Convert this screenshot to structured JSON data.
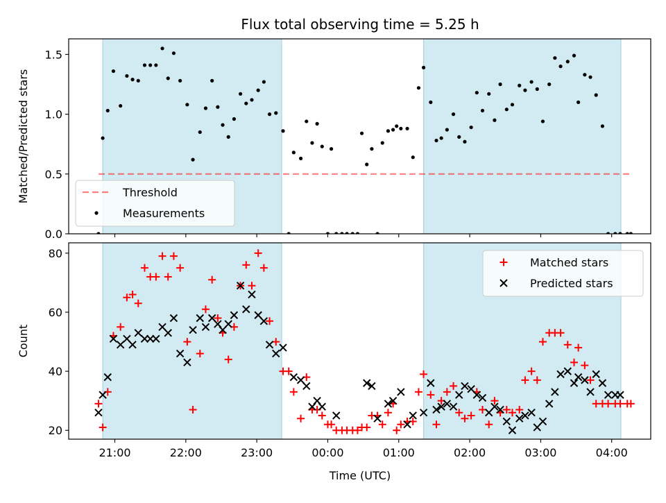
{
  "chart_data": {
    "title": "Flux total observing time = 5.25 h",
    "colors": {
      "shade": "#add8e6",
      "threshold": "#ff0000",
      "measurement": "#000000",
      "matched": "#ff0000",
      "predicted": "#000000"
    },
    "x_axis": {
      "label": "Time (UTC)",
      "range_hours": [
        20.35,
        28.55
      ],
      "ticks": [
        {
          "value": 21,
          "label": "21:00"
        },
        {
          "value": 22,
          "label": "22:00"
        },
        {
          "value": 23,
          "label": "23:00"
        },
        {
          "value": 24,
          "label": "00:00"
        },
        {
          "value": 25,
          "label": "01:00"
        },
        {
          "value": 26,
          "label": "02:00"
        },
        {
          "value": 27,
          "label": "03:00"
        },
        {
          "value": 28,
          "label": "04:00"
        }
      ]
    },
    "shaded_intervals_hours": [
      [
        20.83,
        23.35
      ],
      [
        25.35,
        28.13
      ]
    ],
    "charts": [
      {
        "type": "scatter",
        "ylabel": "Matched/Predicted stars",
        "ylim": [
          0,
          1.63
        ],
        "yticks": [
          {
            "value": 0,
            "label": "0.0"
          },
          {
            "value": 0.5,
            "label": "0.5"
          },
          {
            "value": 1.0,
            "label": "1.0"
          },
          {
            "value": 1.5,
            "label": "1.5"
          }
        ],
        "threshold": {
          "name": "Threshold",
          "value": 0.5,
          "x_range_hours": [
            20.77,
            28.26
          ]
        },
        "legend_position": "lower-left",
        "series": [
          {
            "name": "Measurements",
            "marker": "dot",
            "x_hours": [
              20.77,
              20.83,
              20.9,
              20.98,
              21.08,
              21.17,
              21.25,
              21.33,
              21.42,
              21.5,
              21.58,
              21.67,
              21.75,
              21.83,
              21.92,
              22.02,
              22.1,
              22.2,
              22.28,
              22.37,
              22.45,
              22.52,
              22.6,
              22.68,
              22.77,
              22.85,
              22.93,
              23.02,
              23.1,
              23.18,
              23.27,
              23.37,
              23.45,
              23.52,
              23.62,
              23.7,
              23.78,
              23.85,
              23.92,
              24.0,
              24.05,
              24.12,
              24.2,
              24.27,
              24.35,
              24.42,
              24.48,
              24.55,
              24.62,
              24.7,
              24.77,
              24.85,
              24.92,
              24.97,
              25.03,
              25.12,
              25.2,
              25.28,
              25.35,
              25.45,
              25.53,
              25.6,
              25.68,
              25.77,
              25.85,
              25.93,
              26.02,
              26.1,
              26.18,
              26.27,
              26.35,
              26.43,
              26.52,
              26.6,
              26.7,
              26.78,
              26.87,
              26.95,
              27.03,
              27.12,
              27.2,
              27.28,
              27.38,
              27.47,
              27.53,
              27.62,
              27.7,
              27.78,
              27.87,
              27.95,
              28.05,
              28.12,
              28.22,
              28.27
            ],
            "y": [
              0.0,
              0.8,
              1.03,
              1.36,
              1.07,
              1.32,
              1.29,
              1.28,
              1.41,
              1.41,
              1.41,
              1.55,
              1.3,
              1.51,
              1.28,
              1.08,
              0.62,
              0.85,
              1.05,
              1.28,
              1.06,
              0.91,
              0.81,
              0.96,
              1.17,
              1.09,
              1.12,
              1.2,
              1.27,
              1.0,
              1.01,
              0.86,
              0.0,
              0.68,
              0.63,
              0.94,
              0.76,
              0.92,
              0.73,
              0.0,
              0.71,
              0.0,
              0.0,
              0.0,
              0.0,
              0.0,
              0.84,
              0.58,
              0.71,
              0.0,
              0.76,
              0.86,
              0.87,
              0.9,
              0.88,
              0.88,
              0.64,
              1.22,
              1.39,
              1.1,
              0.78,
              0.8,
              0.87,
              1.0,
              0.81,
              0.77,
              0.89,
              1.18,
              1.03,
              1.17,
              0.95,
              1.25,
              1.04,
              1.08,
              1.24,
              1.2,
              1.27,
              1.21,
              0.94,
              1.25,
              1.47,
              1.4,
              1.44,
              1.49,
              1.1,
              1.33,
              1.31,
              1.16,
              0.9,
              0.0,
              0.0,
              0.0,
              0.0,
              0.0
            ]
          }
        ]
      },
      {
        "type": "scatter",
        "ylabel": "Count",
        "ylim": [
          17,
          83.5
        ],
        "yticks": [
          {
            "value": 20,
            "label": "20"
          },
          {
            "value": 40,
            "label": "40"
          },
          {
            "value": 60,
            "label": "60"
          },
          {
            "value": 80,
            "label": "80"
          }
        ],
        "legend_position": "upper-right",
        "series": [
          {
            "name": "Matched stars",
            "marker": "plus",
            "x_hours": [
              20.77,
              20.83,
              20.9,
              20.98,
              21.08,
              21.17,
              21.25,
              21.33,
              21.42,
              21.5,
              21.58,
              21.67,
              21.75,
              21.83,
              21.92,
              22.02,
              22.1,
              22.2,
              22.28,
              22.37,
              22.45,
              22.52,
              22.6,
              22.68,
              22.77,
              22.85,
              22.93,
              23.02,
              23.1,
              23.18,
              23.27,
              23.37,
              23.45,
              23.52,
              23.62,
              23.7,
              23.78,
              23.85,
              23.92,
              24.0,
              24.05,
              24.12,
              24.2,
              24.27,
              24.35,
              24.42,
              24.48,
              24.55,
              24.62,
              24.7,
              24.77,
              24.85,
              24.92,
              24.97,
              25.03,
              25.12,
              25.2,
              25.28,
              25.35,
              25.45,
              25.53,
              25.6,
              25.68,
              25.77,
              25.85,
              25.93,
              26.02,
              26.1,
              26.18,
              26.27,
              26.35,
              26.43,
              26.52,
              26.6,
              26.7,
              26.78,
              26.87,
              26.95,
              27.03,
              27.12,
              27.2,
              27.28,
              27.38,
              27.47,
              27.53,
              27.62,
              27.7,
              27.78,
              27.87,
              27.95,
              28.05,
              28.12,
              28.22,
              28.27
            ],
            "y": [
              29,
              21,
              33,
              52,
              55,
              65,
              66,
              63,
              75,
              72,
              72,
              79,
              72,
              79,
              75,
              50,
              27,
              46,
              61,
              71,
              58,
              53,
              44,
              55,
              69,
              76,
              69,
              80,
              75,
              57,
              50,
              40,
              40,
              33,
              24,
              38,
              27,
              27,
              25,
              22,
              22,
              20,
              20,
              20,
              20,
              20,
              21,
              21,
              25,
              25,
              22,
              26,
              29,
              20,
              22,
              23,
              23,
              33,
              39,
              32,
              22,
              30,
              33,
              35,
              26,
              24,
              25,
              33,
              27,
              22,
              30,
              26,
              27,
              26,
              27,
              37,
              40,
              37,
              50,
              53,
              53,
              53,
              49,
              43,
              48,
              42,
              37,
              29,
              29,
              29,
              29,
              29,
              29,
              29
            ]
          },
          {
            "name": "Predicted stars",
            "marker": "x",
            "x_hours": [
              20.77,
              20.83,
              20.9,
              20.98,
              21.08,
              21.17,
              21.25,
              21.33,
              21.42,
              21.5,
              21.58,
              21.67,
              21.75,
              21.83,
              21.92,
              22.02,
              22.1,
              22.2,
              22.28,
              22.37,
              22.45,
              22.52,
              22.6,
              22.68,
              22.77,
              22.85,
              22.93,
              23.02,
              23.1,
              23.18,
              23.27,
              23.37,
              23.52,
              23.62,
              23.7,
              23.78,
              23.85,
              23.92,
              24.12,
              24.55,
              24.62,
              24.7,
              24.85,
              24.92,
              25.03,
              25.12,
              25.2,
              25.35,
              25.45,
              25.53,
              25.6,
              25.68,
              25.77,
              25.85,
              25.93,
              26.02,
              26.1,
              26.18,
              26.27,
              26.35,
              26.43,
              26.52,
              26.6,
              26.7,
              26.78,
              26.87,
              26.95,
              27.03,
              27.12,
              27.2,
              27.28,
              27.38,
              27.47,
              27.53,
              27.62,
              27.7,
              27.78,
              27.87,
              27.95,
              28.05,
              28.12
            ],
            "y": [
              26,
              32,
              38,
              51,
              49,
              51,
              49,
              53,
              51,
              51,
              51,
              55,
              53,
              58,
              46,
              43,
              54,
              58,
              55,
              58,
              56,
              54,
              56,
              59,
              69,
              61,
              66,
              59,
              57,
              49,
              46,
              48,
              38,
              37,
              35,
              28,
              30,
              28,
              25,
              36,
              35,
              24,
              29,
              30,
              33,
              22,
              25,
              26,
              36,
              27,
              28,
              29,
              28,
              32,
              35,
              34,
              32,
              31,
              26,
              28,
              27,
              23,
              20,
              24,
              25,
              26,
              21,
              23,
              29,
              33,
              39,
              40,
              36,
              38,
              37,
              33,
              39,
              36,
              32,
              32,
              32
            ]
          }
        ]
      }
    ]
  }
}
